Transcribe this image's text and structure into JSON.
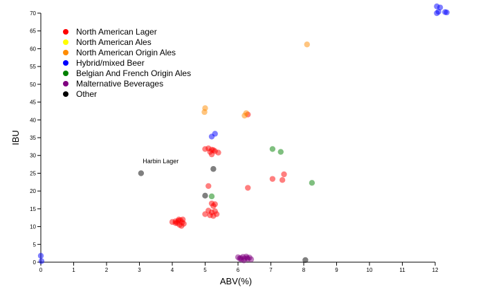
{
  "chart_data": {
    "type": "scatter",
    "xlabel": "ABV(%)",
    "ylabel": "IBU",
    "xlim": [
      0,
      12
    ],
    "ylim": [
      0,
      70
    ],
    "x_ticks": [
      "0",
      "1",
      "2",
      "3",
      "4",
      "5",
      "6",
      "7",
      "8",
      "9",
      "10",
      "11",
      "12"
    ],
    "y_ticks": [
      "0",
      "5",
      "10",
      "15",
      "20",
      "25",
      "30",
      "35",
      "40",
      "45",
      "50",
      "55",
      "60",
      "65",
      "70"
    ],
    "grid": false,
    "legend_position": "top-left",
    "annotations": [
      {
        "text": "Harbin Lager",
        "x": 3.1,
        "y": 27.8
      }
    ],
    "series": [
      {
        "name": "North American Lager",
        "color": "#ff0000",
        "points": [
          [
            4.0,
            11.3
          ],
          [
            4.1,
            11.5
          ],
          [
            4.15,
            11.0
          ],
          [
            4.2,
            12.0
          ],
          [
            4.22,
            10.5
          ],
          [
            4.25,
            11.8
          ],
          [
            4.28,
            10.2
          ],
          [
            4.3,
            11.2
          ],
          [
            4.32,
            12.0
          ],
          [
            4.35,
            10.8
          ],
          [
            4.18,
            11.6
          ],
          [
            4.1,
            11.0
          ],
          [
            5.0,
            13.5
          ],
          [
            5.1,
            14.5
          ],
          [
            5.15,
            13.2
          ],
          [
            5.2,
            14.0
          ],
          [
            5.25,
            13.0
          ],
          [
            5.3,
            14.3
          ],
          [
            5.35,
            13.5
          ],
          [
            5.2,
            16.5
          ],
          [
            5.3,
            16.3
          ],
          [
            5.25,
            15.8
          ],
          [
            5.1,
            21.4
          ],
          [
            5.0,
            31.8
          ],
          [
            5.1,
            32.0
          ],
          [
            5.15,
            31.0
          ],
          [
            5.2,
            30.3
          ],
          [
            5.25,
            31.5
          ],
          [
            5.3,
            31.2
          ],
          [
            5.4,
            30.8
          ],
          [
            5.2,
            31.6
          ],
          [
            6.3,
            41.5
          ],
          [
            6.3,
            20.9
          ],
          [
            7.05,
            23.4
          ],
          [
            7.35,
            23.1
          ],
          [
            7.4,
            24.7
          ]
        ]
      },
      {
        "name": "North American Ales",
        "color": "#ffff00",
        "points": []
      },
      {
        "name": "North American Origin Ales",
        "color": "#ff8c00",
        "points": [
          [
            5.0,
            43.3
          ],
          [
            4.98,
            42.2
          ],
          [
            6.2,
            41.2
          ],
          [
            6.25,
            41.9
          ],
          [
            8.1,
            61.2
          ]
        ]
      },
      {
        "name": "Hybrid/mixed Beer",
        "color": "#0000ff",
        "points": [
          [
            5.2,
            35.3
          ],
          [
            5.3,
            36.1
          ],
          [
            0.0,
            1.8
          ],
          [
            0.02,
            0.3
          ],
          [
            12.05,
            71.9
          ],
          [
            12.15,
            71.6
          ],
          [
            12.1,
            70.4
          ],
          [
            12.05,
            70.0
          ],
          [
            12.3,
            70.3
          ],
          [
            12.35,
            70.2
          ]
        ]
      },
      {
        "name": "Belgian And French Origin Ales",
        "color": "#008000",
        "points": [
          [
            7.05,
            31.8
          ],
          [
            7.3,
            31.0
          ],
          [
            8.25,
            22.3
          ],
          [
            5.2,
            18.5
          ]
        ]
      },
      {
        "name": "Malternative Beverages",
        "color": "#800080",
        "points": [
          [
            6.0,
            1.4
          ],
          [
            6.05,
            1.0
          ],
          [
            6.1,
            0.8
          ],
          [
            6.15,
            1.5
          ],
          [
            6.2,
            1.0
          ],
          [
            6.25,
            1.6
          ],
          [
            6.3,
            0.9
          ],
          [
            6.35,
            1.3
          ],
          [
            6.4,
            0.8
          ],
          [
            6.18,
            0.5
          ],
          [
            6.28,
            1.2
          ],
          [
            6.08,
            1.2
          ]
        ]
      },
      {
        "name": "Other",
        "color": "#000000",
        "points": [
          [
            3.05,
            25.0
          ],
          [
            5.25,
            26.2
          ],
          [
            5.0,
            18.7
          ],
          [
            8.05,
            0.6
          ]
        ]
      }
    ]
  }
}
